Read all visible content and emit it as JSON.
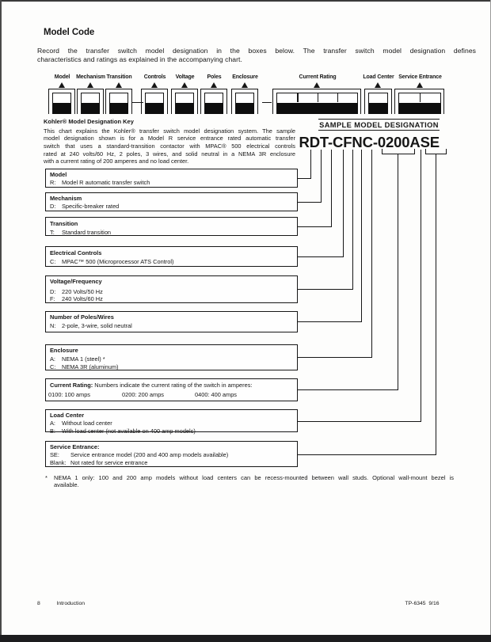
{
  "page": {
    "title": "Model Code"
  },
  "intro": {
    "lines": [
      "Record the transfer switch model designation in the boxes below. The transfer switch model designation defines",
      "characteristics and ratings as explained in the accompanying chart."
    ]
  },
  "diagram": {
    "labels": [
      "Model",
      "Mechanism",
      "Transition",
      "Controls",
      "Voltage",
      "Poles",
      "Enclosure",
      "Current Rating",
      "Load Center",
      "Service Entrance"
    ]
  },
  "key": {
    "heading": "Kohler® Model Designation Key",
    "lines": [
      "This chart explains the Kohler® transfer switch model designation system.  The sample",
      "model designation shown is for a Model R service entrance rated automatic transfer",
      "switch that uses a standard-transition contactor with MPAC® 500 electrical controls",
      "rated at 240 volts/60 Hz, 2 poles, 3 wires, and solid neutral in a NEMA 3R enclosure",
      "with a current rating of 200 amperes and no load center."
    ]
  },
  "sample": {
    "heading": "SAMPLE MODEL DESIGNATION",
    "designation": "RDT-CFNC-0200ASE"
  },
  "sections": [
    {
      "heading": "Model",
      "items": [
        {
          "code": "R:",
          "text": "Model R automatic transfer switch"
        }
      ]
    },
    {
      "heading": "Mechanism",
      "items": [
        {
          "code": "D:",
          "text": "Specific-breaker rated"
        }
      ]
    },
    {
      "heading": "Transition",
      "items": [
        {
          "code": "T:",
          "text": "Standard transition"
        }
      ]
    },
    {
      "heading": "Electrical Controls",
      "items": [
        {
          "code": "C:",
          "text": "MPAC™ 500 (Microprocessor ATS Control)"
        }
      ]
    },
    {
      "heading": "Voltage/Frequency",
      "items": [
        {
          "code": "D:",
          "text": "220 Volts/50 Hz"
        },
        {
          "code": "F:",
          "text": "240 Volts/60 Hz"
        }
      ]
    },
    {
      "heading": "Number of Poles/Wires",
      "items": [
        {
          "code": "N:",
          "text": "2-pole, 3-wire, solid neutral"
        }
      ]
    },
    {
      "heading": "Enclosure",
      "items": [
        {
          "code": "A:",
          "text": "NEMA 1 (steel) *"
        },
        {
          "code": "C:",
          "text": "NEMA 3R (aluminum)"
        }
      ]
    },
    {
      "heading": "Current Rating:",
      "heading_note": "  Numbers indicate the current rating of the switch in amperes:",
      "columns": [
        {
          "code": "0100:",
          "text": "100 amps"
        },
        {
          "code": "0200:",
          "text": "200 amps"
        },
        {
          "code": "0400:",
          "text": "400 amps"
        }
      ]
    },
    {
      "heading": "Load Center",
      "items": [
        {
          "code": "A:",
          "text": "Without load center"
        },
        {
          "code": "B:",
          "text": "With load center (not available on 400 amp models)"
        }
      ]
    },
    {
      "heading": "Service Entrance:",
      "items": [
        {
          "code": "SE:",
          "text": "Service entrance model (200 and 400 amp models available)"
        },
        {
          "code": "Blank:",
          "text": "Not rated for service entrance"
        }
      ]
    }
  ],
  "footnote": {
    "marker": "*",
    "lines": [
      "NEMA 1 only: 100 and 200 amp models without load centers can be recess-mounted between wall studs.  Optional wall-mount bezel is",
      "available."
    ]
  },
  "footer": {
    "page_number": "8",
    "section": "Introduction",
    "doc_number": "TP-6345  9/16"
  }
}
